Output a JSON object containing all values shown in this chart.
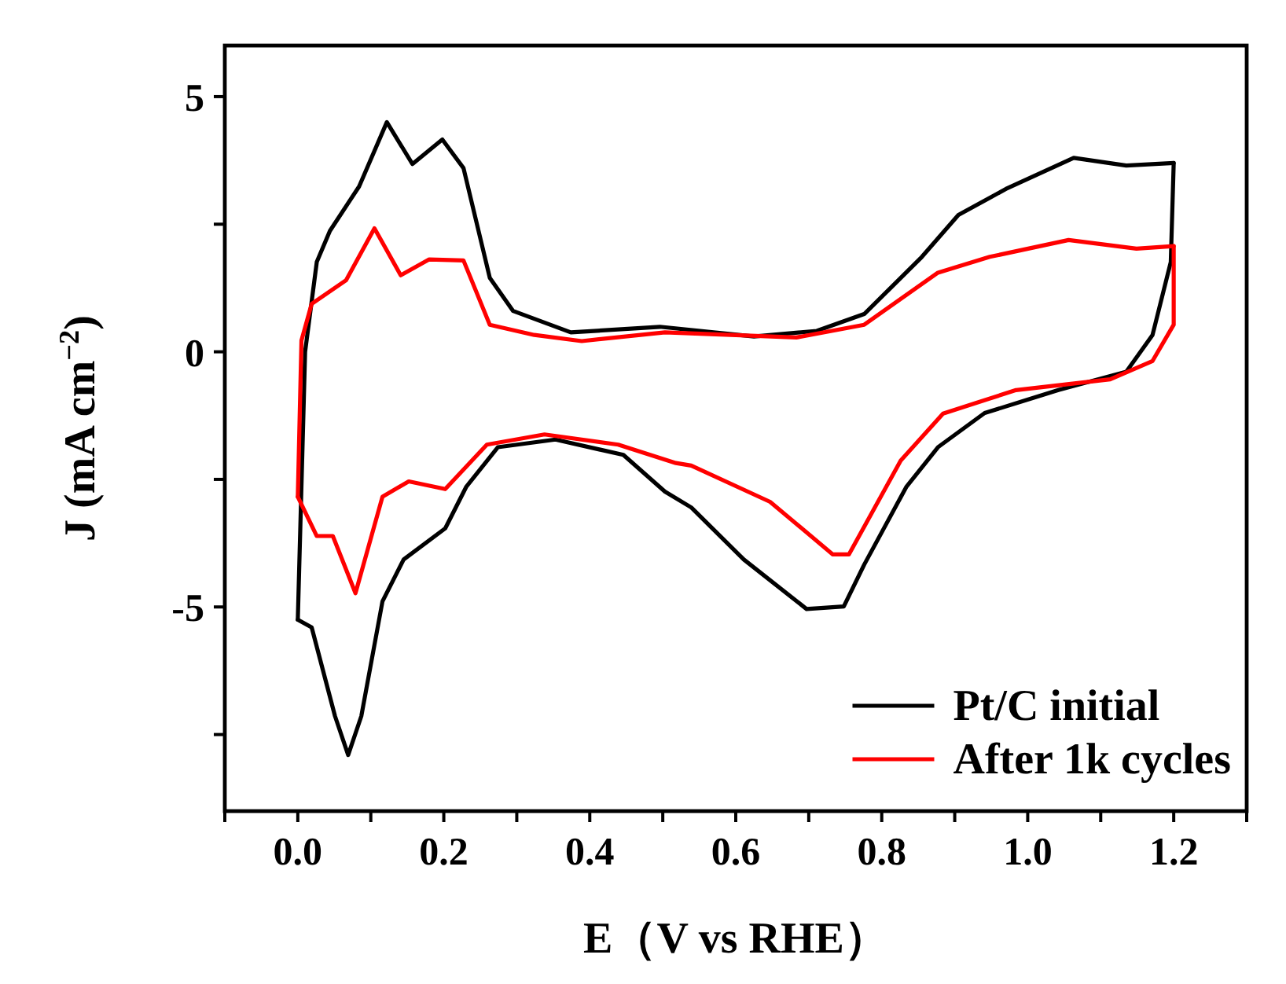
{
  "chart_data": {
    "type": "line",
    "xlabel": "E（V vs RHE）",
    "ylabel": "J (mA cm$^{−2}$)",
    "xlim": [
      -0.1,
      1.3
    ],
    "ylim": [
      -9,
      6
    ],
    "xticks": [
      {
        "value": -0.1,
        "label": null
      },
      {
        "value": 0.0,
        "label": "0.0"
      },
      {
        "value": 0.1,
        "label": null
      },
      0.2,
      {
        "value": 0.3,
        "label": null
      },
      0.4,
      {
        "value": 0.5,
        "label": null
      },
      0.6,
      {
        "value": 0.7,
        "label": null
      },
      0.8,
      {
        "value": 0.9,
        "label": null
      },
      {
        "value": 1.0,
        "label": "1.0"
      },
      {
        "value": 1.1,
        "label": null
      },
      1.2,
      {
        "value": 1.3,
        "label": null
      }
    ],
    "yticks": [
      {
        "value": -7.5,
        "label": null
      },
      -5,
      {
        "value": -2.5,
        "label": null
      },
      0,
      {
        "value": 2.5,
        "label": null
      },
      5
    ],
    "grid": false,
    "legend": "bottom right",
    "marker": "none",
    "line_style": "solid",
    "series": [
      {
        "name": "Pt/C initial",
        "color": "#000000",
        "x": [
          0.0,
          0.01,
          0.026,
          0.044,
          0.084,
          0.122,
          0.157,
          0.198,
          0.227,
          0.263,
          0.295,
          0.374,
          0.496,
          0.625,
          0.711,
          0.776,
          0.855,
          0.905,
          0.97,
          1.063,
          1.135,
          1.2
        ],
        "values": [
          -5.25,
          0.0,
          1.76,
          2.37,
          3.24,
          4.5,
          3.68,
          4.16,
          3.6,
          1.45,
          0.8,
          0.38,
          0.49,
          0.3,
          0.41,
          0.74,
          1.86,
          2.68,
          3.19,
          3.8,
          3.65,
          3.7
        ]
      },
      {
        "color": "#000000",
        "x": [
          0.0,
          0.019,
          0.051,
          0.069,
          0.087,
          0.116,
          0.145,
          0.202,
          0.231,
          0.274,
          0.353,
          0.446,
          0.503,
          0.539,
          0.611,
          0.697,
          0.748,
          0.776,
          0.834,
          0.877,
          0.941,
          1.042,
          1.135,
          1.171,
          1.196,
          1.2
        ],
        "values": [
          -5.25,
          -5.4,
          -7.14,
          -7.9,
          -7.14,
          -4.89,
          -4.07,
          -3.46,
          -2.64,
          -1.87,
          -1.72,
          -2.02,
          -2.74,
          -3.05,
          -4.07,
          -5.04,
          -4.99,
          -4.17,
          -2.64,
          -1.87,
          -1.2,
          -0.75,
          -0.39,
          0.33,
          1.76,
          3.7
        ]
      },
      {
        "name": "After 1k cycles",
        "color": "#ff0000",
        "x": [
          0.0,
          0.005,
          0.019,
          0.066,
          0.105,
          0.141,
          0.18,
          0.227,
          0.263,
          0.324,
          0.389,
          0.503,
          0.683,
          0.776,
          0.877,
          0.948,
          1.056,
          1.149,
          1.2
        ],
        "values": [
          -2.84,
          0.22,
          0.94,
          1.4,
          2.42,
          1.5,
          1.81,
          1.79,
          0.53,
          0.33,
          0.21,
          0.38,
          0.28,
          0.53,
          1.55,
          1.86,
          2.19,
          2.02,
          2.07
        ]
      },
      {
        "color": "#ff0000",
        "x": [
          0.0,
          0.026,
          0.048,
          0.079,
          0.116,
          0.152,
          0.202,
          0.259,
          0.338,
          0.439,
          0.518,
          0.539,
          0.647,
          0.733,
          0.755,
          0.826,
          0.884,
          0.984,
          1.113,
          1.171,
          1.2,
          1.2
        ],
        "values": [
          -2.84,
          -3.61,
          -3.61,
          -4.73,
          -2.84,
          -2.54,
          -2.69,
          -1.82,
          -1.62,
          -1.82,
          -2.18,
          -2.23,
          -2.94,
          -3.97,
          -3.97,
          -2.13,
          -1.21,
          -0.75,
          -0.54,
          -0.18,
          0.53,
          2.07
        ]
      }
    ]
  }
}
